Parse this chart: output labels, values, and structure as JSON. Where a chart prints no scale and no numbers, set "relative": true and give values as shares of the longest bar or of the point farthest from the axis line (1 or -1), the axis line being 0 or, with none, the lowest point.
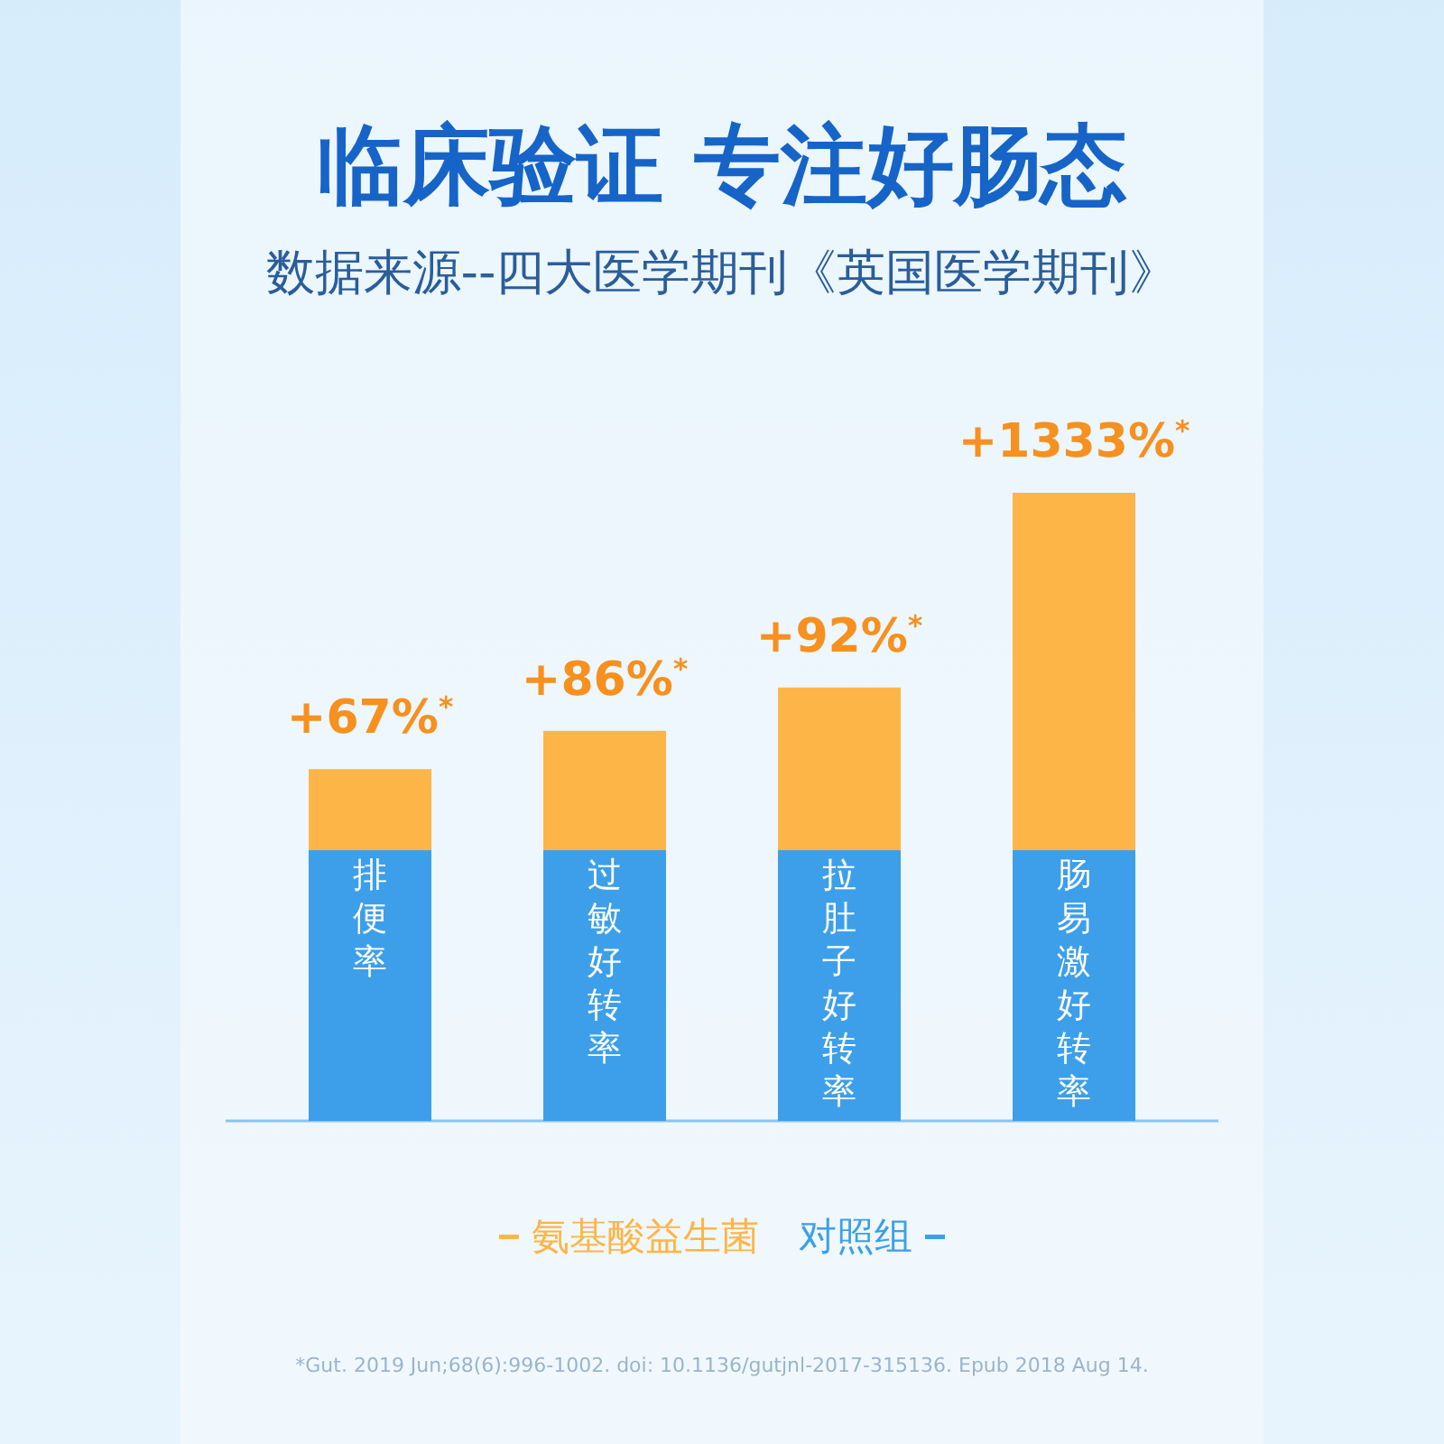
{
  "chart_data": {
    "type": "bar",
    "title": "临床验证 专注好肠态",
    "subtitle": "数据来源--四大医学期刊《英国医学期刊》",
    "categories": [
      "排便率",
      "过敏好转率",
      "拉肚子好转率",
      "肠易激好转率"
    ],
    "stacked": true,
    "relative": true,
    "legend": "bottom",
    "series": [
      {
        "name": "对照组",
        "color": "#3d9fe9",
        "values": [
          0.431,
          0.431,
          0.431,
          0.431
        ]
      },
      {
        "name": "氨基酸益生菌",
        "color": "#fdb548",
        "values": [
          0.129,
          0.19,
          0.259,
          0.569
        ]
      }
    ],
    "annotations": [
      "+67%$^{*}$",
      "+86%$^{*}$",
      "+92%$^{*}$",
      "+1333%$^{*}$",
      "*Gut. 2019 Jun;68(6):996-1002. doi: 10.1136/gutjnl-2017-315136. Epub 2018 Aug 14."
    ]
  }
}
